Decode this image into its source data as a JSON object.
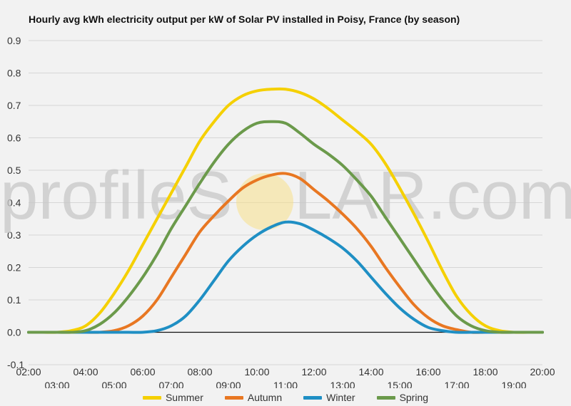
{
  "chart_data": {
    "type": "line",
    "title": "Hourly avg kWh electricity output per kW of Solar PV installed in Poisy, France (by season)",
    "xlabel": "",
    "ylabel": "",
    "x": [
      2,
      2.5,
      3,
      3.5,
      4,
      4.5,
      5,
      5.5,
      6,
      6.5,
      7,
      7.5,
      8,
      8.5,
      9,
      9.5,
      10,
      10.5,
      11,
      11.5,
      12,
      12.5,
      13,
      13.5,
      14,
      14.5,
      15,
      15.5,
      16,
      16.5,
      17,
      17.5,
      18,
      18.5,
      19,
      19.5,
      20
    ],
    "x_ticks": [
      "02:00",
      "03:00",
      "04:00",
      "05:00",
      "06:00",
      "07:00",
      "08:00",
      "09:00",
      "10:00",
      "11:00",
      "12:00",
      "13:00",
      "14:00",
      "15:00",
      "16:00",
      "17:00",
      "18:00",
      "19:00",
      "20:00"
    ],
    "xlim": [
      2,
      20
    ],
    "ylim": [
      -0.1,
      0.9
    ],
    "y_ticks": [
      "-0.1",
      "0.0",
      "0.1",
      "0.2",
      "0.3",
      "0.4",
      "0.5",
      "0.6",
      "0.7",
      "0.8",
      "0.9"
    ],
    "grid": true,
    "legend_position": "bottom",
    "series": [
      {
        "name": "Summer",
        "color": "#f5d000",
        "values": [
          0,
          0,
          0,
          0.005,
          0.02,
          0.06,
          0.12,
          0.19,
          0.27,
          0.35,
          0.43,
          0.51,
          0.59,
          0.65,
          0.7,
          0.73,
          0.745,
          0.75,
          0.75,
          0.74,
          0.72,
          0.69,
          0.655,
          0.62,
          0.58,
          0.52,
          0.445,
          0.365,
          0.28,
          0.19,
          0.11,
          0.055,
          0.02,
          0.005,
          0,
          0,
          0
        ]
      },
      {
        "name": "Autumn",
        "color": "#e87722",
        "values": [
          0,
          0,
          0,
          0,
          0,
          0,
          0.005,
          0.02,
          0.05,
          0.1,
          0.17,
          0.24,
          0.31,
          0.36,
          0.405,
          0.445,
          0.47,
          0.485,
          0.49,
          0.475,
          0.44,
          0.405,
          0.365,
          0.32,
          0.265,
          0.2,
          0.14,
          0.085,
          0.045,
          0.02,
          0.008,
          0,
          0,
          0,
          0,
          0,
          0
        ]
      },
      {
        "name": "Winter",
        "color": "#1f8fc4",
        "values": [
          0,
          0,
          0,
          0,
          0,
          0,
          0,
          0,
          0,
          0.005,
          0.02,
          0.05,
          0.1,
          0.16,
          0.22,
          0.265,
          0.3,
          0.325,
          0.34,
          0.335,
          0.315,
          0.29,
          0.26,
          0.22,
          0.17,
          0.12,
          0.075,
          0.04,
          0.015,
          0.005,
          0,
          0,
          0,
          0,
          0,
          0,
          0
        ]
      },
      {
        "name": "Spring",
        "color": "#6b9a4b",
        "values": [
          0,
          0,
          0,
          0,
          0.005,
          0.025,
          0.06,
          0.11,
          0.17,
          0.24,
          0.32,
          0.39,
          0.46,
          0.525,
          0.58,
          0.62,
          0.645,
          0.65,
          0.645,
          0.615,
          0.58,
          0.55,
          0.515,
          0.47,
          0.42,
          0.355,
          0.29,
          0.225,
          0.16,
          0.1,
          0.05,
          0.02,
          0.005,
          0,
          0,
          0,
          0
        ]
      }
    ]
  },
  "watermark": {
    "left": "profileS",
    "right": "LAR.com",
    "sun_color": "#f7e08a"
  }
}
